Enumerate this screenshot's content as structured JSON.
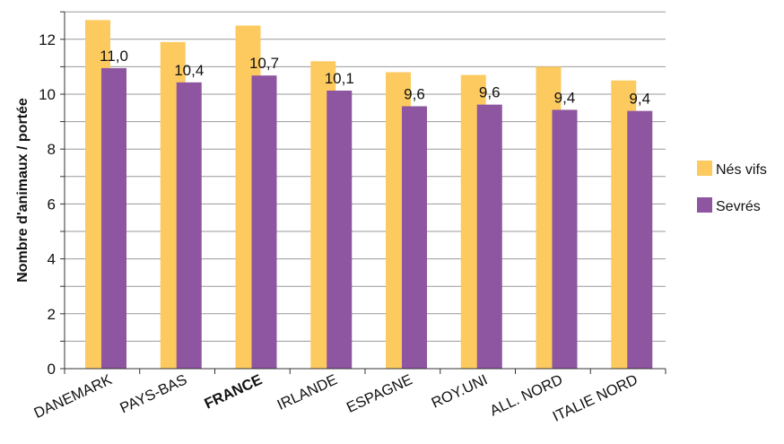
{
  "chart_data": {
    "type": "bar",
    "ylabel": "Nombre d'animaux / portée",
    "ylim": [
      0,
      13
    ],
    "yticks": [
      0,
      2,
      4,
      6,
      8,
      10,
      12
    ],
    "grid": true,
    "legend_position": "right",
    "categories": [
      "DANEMARK",
      "PAYS-BAS",
      "FRANCE",
      "IRLANDE",
      "ESPAGNE",
      "ROY.UNI",
      "ALL. NORD",
      "ITALIE NORD"
    ],
    "highlighted_category": "FRANCE",
    "series": [
      {
        "name": "Nés vifs",
        "color": "#FDCA60",
        "values": [
          12.7,
          11.9,
          12.5,
          11.2,
          10.8,
          10.7,
          11.0,
          10.5
        ]
      },
      {
        "name": "Sevrés",
        "color": "#8E55A0",
        "values": [
          10.95,
          10.43,
          10.68,
          10.13,
          9.56,
          9.62,
          9.43,
          9.39
        ],
        "data_labels": [
          "11,0",
          "10,4",
          "10,7",
          "10,1",
          "9,6",
          "9,6",
          "9,4",
          "9,4"
        ]
      }
    ]
  }
}
